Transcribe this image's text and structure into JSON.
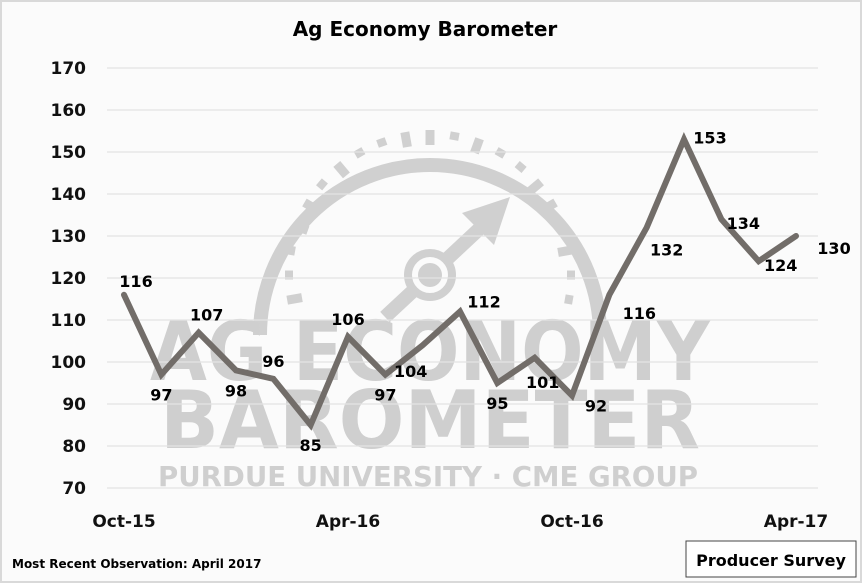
{
  "chart_data": {
    "type": "line",
    "title": "Ag Economy Barometer",
    "xlabel": "",
    "ylabel": "",
    "ylim": [
      70,
      170
    ],
    "y_ticks": [
      70,
      80,
      90,
      100,
      110,
      120,
      130,
      140,
      150,
      160,
      170
    ],
    "x_tick_labels": [
      "Oct-15",
      "Apr-16",
      "Oct-16",
      "Apr-17"
    ],
    "grid": true,
    "legend": "none",
    "x": [
      "Oct-15",
      "Nov-15",
      "Dec-15",
      "Jan-16",
      "Feb-16",
      "Mar-16",
      "Apr-16",
      "May-16",
      "Jun-16",
      "Jul-16",
      "Aug-16",
      "Sep-16",
      "Oct-16",
      "Nov-16",
      "Dec-16",
      "Jan-17",
      "Feb-17",
      "Mar-17",
      "Apr-17"
    ],
    "series": [
      {
        "name": "Ag Economy Barometer",
        "color": "#726d69",
        "values": [
          116,
          97,
          107,
          98,
          96,
          85,
          106,
          97,
          104,
          112,
          95,
          101,
          92,
          116,
          132,
          153,
          134,
          124,
          130
        ]
      }
    ]
  },
  "watermark": {
    "line1": "AG ECONOMY",
    "line2": "BAROMETER",
    "line3": "PURDUE UNIVERSITY  ·  CME GROUP"
  },
  "footer": {
    "note": "Most Recent Observation: April 2017",
    "badge": "Producer Survey"
  }
}
